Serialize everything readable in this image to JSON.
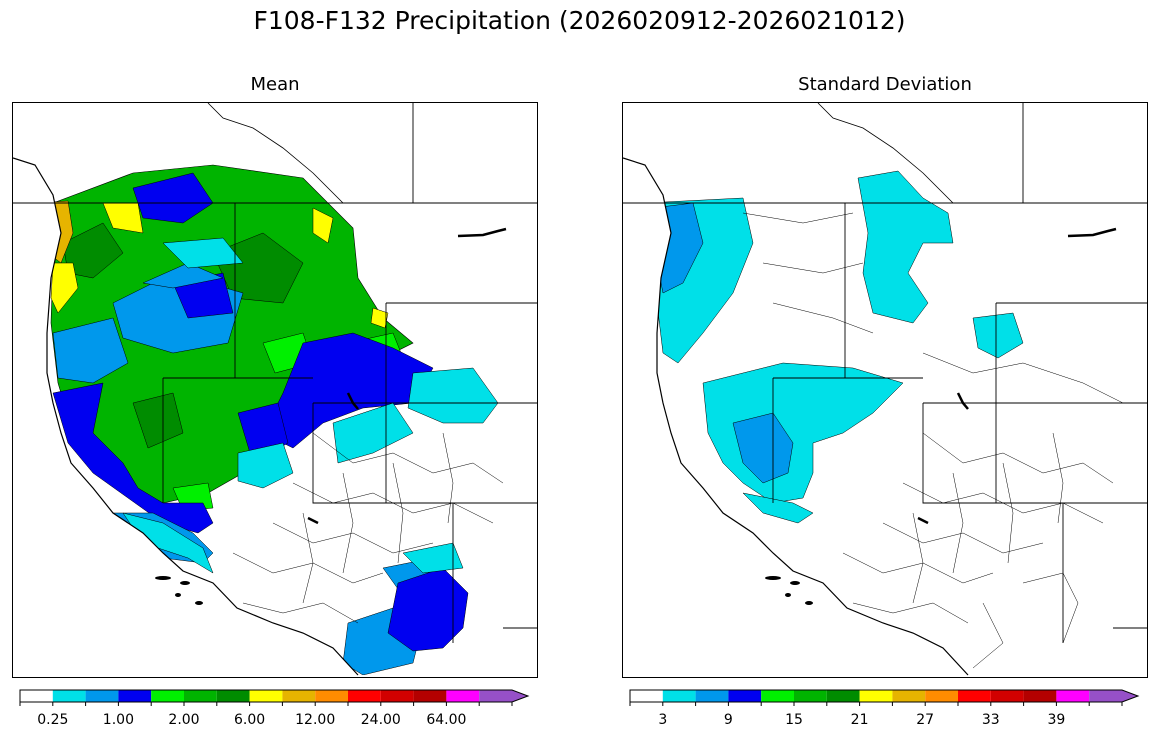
{
  "figure": {
    "title": "F108-F132 Precipitation (2026020912-2026021012)"
  },
  "panels": [
    {
      "title": "Mean",
      "colorbar": {
        "colors": [
          "#ffffff",
          "#00e0e8",
          "#0098ec",
          "#0000f0",
          "#00f000",
          "#00b400",
          "#008c00",
          "#ffff00",
          "#e6b400",
          "#ff8c00",
          "#ff0000",
          "#d20000",
          "#b40000",
          "#ff00ff",
          "#9650c8"
        ],
        "tick_labels": [
          "0.25",
          "1.00",
          "2.00",
          "6.00",
          "12.00",
          "24.00",
          "64.00"
        ],
        "extend": "max"
      }
    },
    {
      "title": "Standard Deviation",
      "colorbar": {
        "colors": [
          "#ffffff",
          "#00e0e8",
          "#0098ec",
          "#0000f0",
          "#00f000",
          "#00b400",
          "#008c00",
          "#ffff00",
          "#e6b400",
          "#ff8c00",
          "#ff0000",
          "#d20000",
          "#b40000",
          "#ff00ff",
          "#9650c8"
        ],
        "tick_labels": [
          "3",
          "9",
          "15",
          "21",
          "27",
          "33",
          "39"
        ],
        "extend": "max"
      }
    }
  ]
}
